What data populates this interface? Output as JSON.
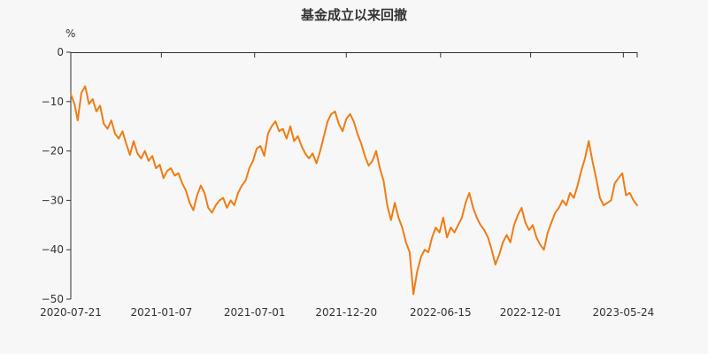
{
  "chart_data": {
    "type": "line",
    "title": "基金成立以来回撤",
    "y_unit": "%",
    "ylim": [
      -50,
      0
    ],
    "y_ticks": [
      "0",
      "−10",
      "−20",
      "−30",
      "−40",
      "−50"
    ],
    "x_ticks": [
      "2020-07-21",
      "2021-01-07",
      "2021-07-01",
      "2021-12-20",
      "2022-06-15",
      "2022-12-01",
      "2023-05-24"
    ],
    "grid": false,
    "legend": "none",
    "series": [
      {
        "color": "#f07c13",
        "points": [
          [
            "2020-07-21",
            -8.5
          ],
          [
            "2020-07-28",
            -10.5
          ],
          [
            "2020-08-03",
            -13.8
          ],
          [
            "2020-08-10",
            -8.2
          ],
          [
            "2020-08-17",
            -6.9
          ],
          [
            "2020-08-24",
            -10.5
          ],
          [
            "2020-08-31",
            -9.5
          ],
          [
            "2020-09-07",
            -12.0
          ],
          [
            "2020-09-14",
            -10.8
          ],
          [
            "2020-09-21",
            -14.5
          ],
          [
            "2020-09-28",
            -15.5
          ],
          [
            "2020-10-05",
            -13.8
          ],
          [
            "2020-10-12",
            -16.5
          ],
          [
            "2020-10-19",
            -17.5
          ],
          [
            "2020-10-26",
            -16.0
          ],
          [
            "2020-11-02",
            -18.5
          ],
          [
            "2020-11-09",
            -20.8
          ],
          [
            "2020-11-16",
            -18.0
          ],
          [
            "2020-11-23",
            -20.5
          ],
          [
            "2020-11-30",
            -21.5
          ],
          [
            "2020-12-07",
            -20.0
          ],
          [
            "2020-12-14",
            -22.0
          ],
          [
            "2020-12-21",
            -21.0
          ],
          [
            "2020-12-28",
            -23.5
          ],
          [
            "2021-01-04",
            -22.8
          ],
          [
            "2021-01-11",
            -25.5
          ],
          [
            "2021-01-18",
            -24.0
          ],
          [
            "2021-01-25",
            -23.5
          ],
          [
            "2021-02-01",
            -25.0
          ],
          [
            "2021-02-08",
            -24.5
          ],
          [
            "2021-02-15",
            -26.5
          ],
          [
            "2021-02-22",
            -28.0
          ],
          [
            "2021-03-01",
            -30.5
          ],
          [
            "2021-03-08",
            -32.0
          ],
          [
            "2021-03-15",
            -29.0
          ],
          [
            "2021-03-22",
            -27.0
          ],
          [
            "2021-03-29",
            -28.5
          ],
          [
            "2021-04-05",
            -31.5
          ],
          [
            "2021-04-12",
            -32.5
          ],
          [
            "2021-04-19",
            -31.0
          ],
          [
            "2021-04-26",
            -30.0
          ],
          [
            "2021-05-03",
            -29.5
          ],
          [
            "2021-05-10",
            -31.5
          ],
          [
            "2021-05-17",
            -30.0
          ],
          [
            "2021-05-24",
            -31.0
          ],
          [
            "2021-05-31",
            -28.5
          ],
          [
            "2021-06-07",
            -27.0
          ],
          [
            "2021-06-14",
            -26.0
          ],
          [
            "2021-06-21",
            -23.5
          ],
          [
            "2021-06-28",
            -22.0
          ],
          [
            "2021-07-05",
            -19.5
          ],
          [
            "2021-07-12",
            -19.0
          ],
          [
            "2021-07-19",
            -21.0
          ],
          [
            "2021-07-26",
            -16.5
          ],
          [
            "2021-08-02",
            -15.0
          ],
          [
            "2021-08-09",
            -14.0
          ],
          [
            "2021-08-16",
            -16.0
          ],
          [
            "2021-08-23",
            -15.5
          ],
          [
            "2021-08-30",
            -17.5
          ],
          [
            "2021-09-06",
            -15.0
          ],
          [
            "2021-09-13",
            -18.0
          ],
          [
            "2021-09-20",
            -17.0
          ],
          [
            "2021-09-27",
            -19.0
          ],
          [
            "2021-10-04",
            -20.5
          ],
          [
            "2021-10-11",
            -21.5
          ],
          [
            "2021-10-18",
            -20.5
          ],
          [
            "2021-10-25",
            -22.5
          ],
          [
            "2021-11-01",
            -20.0
          ],
          [
            "2021-11-08",
            -17.0
          ],
          [
            "2021-11-15",
            -14.0
          ],
          [
            "2021-11-22",
            -12.5
          ],
          [
            "2021-11-29",
            -12.0
          ],
          [
            "2021-12-06",
            -14.5
          ],
          [
            "2021-12-13",
            -16.0
          ],
          [
            "2021-12-20",
            -13.5
          ],
          [
            "2021-12-27",
            -12.5
          ],
          [
            "2022-01-03",
            -14.0
          ],
          [
            "2022-01-10",
            -16.5
          ],
          [
            "2022-01-17",
            -18.5
          ],
          [
            "2022-01-24",
            -21.0
          ],
          [
            "2022-01-31",
            -23.0
          ],
          [
            "2022-02-07",
            -22.0
          ],
          [
            "2022-02-14",
            -20.0
          ],
          [
            "2022-02-21",
            -23.5
          ],
          [
            "2022-02-28",
            -26.0
          ],
          [
            "2022-03-07",
            -31.0
          ],
          [
            "2022-03-14",
            -34.0
          ],
          [
            "2022-03-21",
            -30.5
          ],
          [
            "2022-03-28",
            -33.5
          ],
          [
            "2022-04-04",
            -35.5
          ],
          [
            "2022-04-11",
            -38.5
          ],
          [
            "2022-04-18",
            -40.5
          ],
          [
            "2022-04-25",
            -49.0
          ],
          [
            "2022-05-02",
            -44.5
          ],
          [
            "2022-05-09",
            -41.5
          ],
          [
            "2022-05-16",
            -40.0
          ],
          [
            "2022-05-23",
            -40.5
          ],
          [
            "2022-05-30",
            -37.5
          ],
          [
            "2022-06-06",
            -35.5
          ],
          [
            "2022-06-13",
            -36.5
          ],
          [
            "2022-06-20",
            -33.5
          ],
          [
            "2022-06-27",
            -37.5
          ],
          [
            "2022-07-04",
            -35.5
          ],
          [
            "2022-07-11",
            -36.5
          ],
          [
            "2022-07-18",
            -35.0
          ],
          [
            "2022-07-25",
            -33.5
          ],
          [
            "2022-08-01",
            -30.5
          ],
          [
            "2022-08-08",
            -28.5
          ],
          [
            "2022-08-15",
            -31.5
          ],
          [
            "2022-08-22",
            -33.5
          ],
          [
            "2022-08-29",
            -35.0
          ],
          [
            "2022-09-05",
            -36.0
          ],
          [
            "2022-09-12",
            -37.5
          ],
          [
            "2022-09-19",
            -40.0
          ],
          [
            "2022-09-26",
            -43.0
          ],
          [
            "2022-10-03",
            -41.0
          ],
          [
            "2022-10-10",
            -38.5
          ],
          [
            "2022-10-17",
            -37.0
          ],
          [
            "2022-10-24",
            -38.5
          ],
          [
            "2022-10-31",
            -35.0
          ],
          [
            "2022-11-07",
            -33.0
          ],
          [
            "2022-11-14",
            -31.5
          ],
          [
            "2022-11-21",
            -34.5
          ],
          [
            "2022-11-28",
            -36.0
          ],
          [
            "2022-12-05",
            -35.0
          ],
          [
            "2022-12-12",
            -37.5
          ],
          [
            "2022-12-19",
            -39.0
          ],
          [
            "2022-12-26",
            -40.0
          ],
          [
            "2023-01-02",
            -36.5
          ],
          [
            "2023-01-09",
            -34.5
          ],
          [
            "2023-01-16",
            -32.5
          ],
          [
            "2023-01-23",
            -31.5
          ],
          [
            "2023-01-30",
            -30.0
          ],
          [
            "2023-02-06",
            -31.0
          ],
          [
            "2023-02-13",
            -28.5
          ],
          [
            "2023-02-20",
            -29.5
          ],
          [
            "2023-02-27",
            -27.0
          ],
          [
            "2023-03-06",
            -24.0
          ],
          [
            "2023-03-13",
            -21.5
          ],
          [
            "2023-03-20",
            -18.0
          ],
          [
            "2023-03-27",
            -22.0
          ],
          [
            "2023-04-03",
            -25.5
          ],
          [
            "2023-04-10",
            -29.5
          ],
          [
            "2023-04-17",
            -31.0
          ],
          [
            "2023-04-24",
            -30.5
          ],
          [
            "2023-05-01",
            -30.0
          ],
          [
            "2023-05-08",
            -26.5
          ],
          [
            "2023-05-15",
            -25.5
          ],
          [
            "2023-05-22",
            -24.5
          ],
          [
            "2023-05-29",
            -29.0
          ],
          [
            "2023-06-05",
            -28.5
          ],
          [
            "2023-06-12",
            -30.0
          ],
          [
            "2023-06-19",
            -31.0
          ]
        ]
      }
    ]
  }
}
